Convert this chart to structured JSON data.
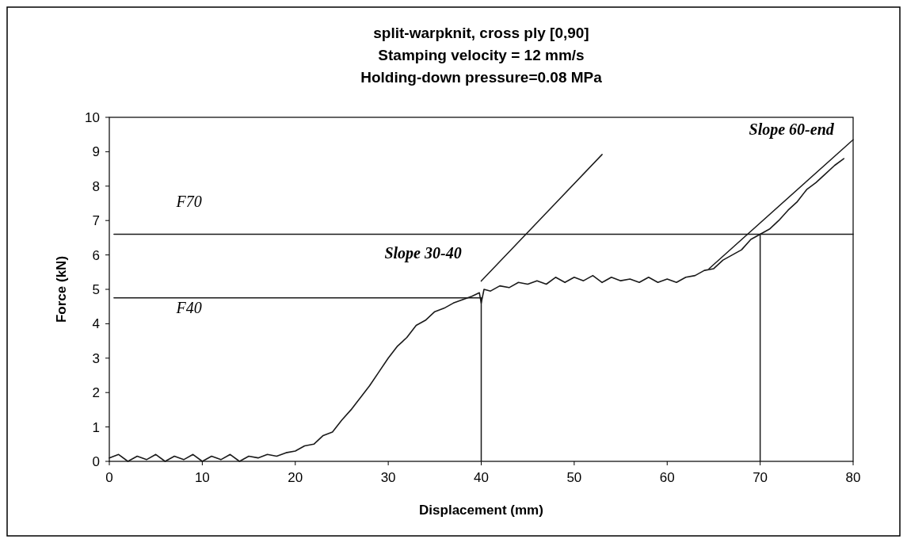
{
  "chart_data": {
    "type": "line",
    "title": "split-warpknit, cross ply [0,90]\nStamping velocity = 12 mm/s\nHolding-down pressure=0.08 MPa",
    "xlabel": "Displacement (mm)",
    "ylabel": "Force (kN)",
    "xlim": [
      0,
      80
    ],
    "ylim": [
      0,
      10
    ],
    "xticks": [
      0,
      10,
      20,
      30,
      40,
      50,
      60,
      70,
      80
    ],
    "yticks": [
      0,
      1,
      2,
      3,
      4,
      5,
      6,
      7,
      8,
      9,
      10
    ],
    "grid": false,
    "series": [
      {
        "color": "#1a1a1a",
        "x": [
          0,
          1,
          2,
          3,
          4,
          5,
          6,
          7,
          8,
          9,
          10,
          11,
          12,
          13,
          14,
          15,
          16,
          17,
          18,
          19,
          20,
          21,
          22,
          23,
          24,
          25,
          26,
          27,
          28,
          29,
          30,
          31,
          32,
          33,
          34,
          35,
          36,
          37,
          38,
          39,
          39.8,
          40,
          40.3,
          41,
          42,
          43,
          44,
          45,
          46,
          47,
          48,
          49,
          50,
          51,
          52,
          53,
          54,
          55,
          56,
          57,
          58,
          59,
          60,
          61,
          62,
          63,
          64,
          65,
          66,
          67,
          68,
          69,
          70,
          71,
          72,
          73,
          74,
          75,
          76,
          77,
          78,
          79
        ],
        "values": [
          0.1,
          0.2,
          0.0,
          0.15,
          0.05,
          0.2,
          0.0,
          0.15,
          0.05,
          0.2,
          0.0,
          0.15,
          0.05,
          0.2,
          0.0,
          0.15,
          0.1,
          0.2,
          0.15,
          0.25,
          0.3,
          0.45,
          0.5,
          0.75,
          0.85,
          1.2,
          1.5,
          1.85,
          2.2,
          2.6,
          3.0,
          3.35,
          3.6,
          3.95,
          4.1,
          4.35,
          4.45,
          4.6,
          4.7,
          4.8,
          4.9,
          4.6,
          5.0,
          4.95,
          5.1,
          5.05,
          5.2,
          5.15,
          5.25,
          5.15,
          5.35,
          5.2,
          5.35,
          5.25,
          5.4,
          5.2,
          5.35,
          5.25,
          5.3,
          5.2,
          5.35,
          5.2,
          5.3,
          5.2,
          5.35,
          5.4,
          5.55,
          5.6,
          5.85,
          6.0,
          6.15,
          6.45,
          6.6,
          6.75,
          7.0,
          7.3,
          7.55,
          7.9,
          8.1,
          8.35,
          8.6,
          8.8
        ]
      },
      {
        "color": "#1a1a1a",
        "x": [
          40,
          53
        ],
        "values": [
          5.24,
          8.92
        ]
      },
      {
        "color": "#1a1a1a",
        "x": [
          64.5,
          80
        ],
        "values": [
          5.6,
          9.35
        ]
      },
      {
        "color": "#1a1a1a",
        "x": [
          0.5,
          80
        ],
        "values": [
          6.6,
          6.6
        ]
      },
      {
        "color": "#1a1a1a",
        "x": [
          0.5,
          40
        ],
        "values": [
          4.75,
          4.75
        ]
      },
      {
        "color": "#1a1a1a",
        "x": [
          40,
          40
        ],
        "values": [
          0,
          4.75
        ]
      },
      {
        "color": "#1a1a1a",
        "x": [
          70,
          70
        ],
        "values": [
          0,
          6.6
        ]
      }
    ],
    "annotations": [
      "F70",
      "F40",
      "Slope 30-40",
      "Slope 60-end"
    ]
  }
}
